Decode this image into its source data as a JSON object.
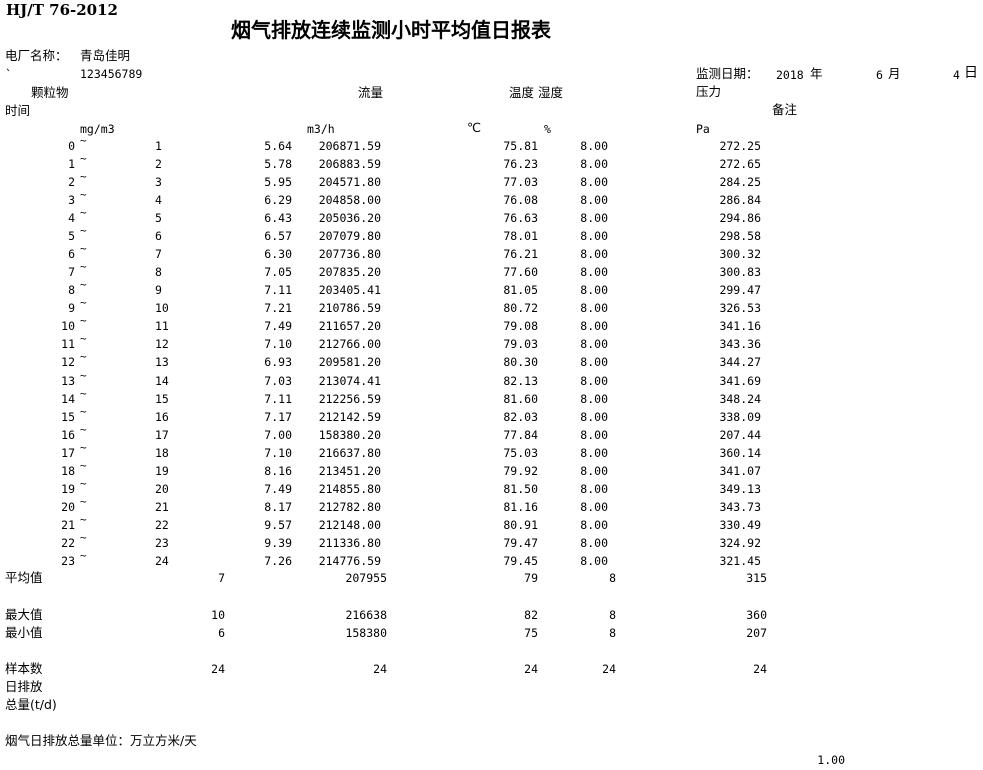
{
  "header": {
    "standard": "HJ/T 76-2012",
    "title": "烟气排放连续监测小时平均值日报表",
    "plant_label": "电厂名称：",
    "plant_name": "青岛佳明",
    "backtick": "`",
    "code": "123456789",
    "date_label": "监测日期：",
    "year": "2018",
    "year_unit": "年",
    "month": "6",
    "month_unit": "月",
    "day": "4",
    "day_unit": "日"
  },
  "columns": {
    "time": "时间",
    "pm": "颗粒物",
    "flow": "流量",
    "temp_humidity": "温度 湿度",
    "pressure": "压力",
    "remark": "备注",
    "pm_unit": "mg/m3",
    "flow_unit": "m3/h",
    "temp_unit": "℃",
    "humidity_unit": "%",
    "pressure_unit": "Pa"
  },
  "tilde": "~",
  "rows": [
    {
      "start": "0",
      "end": "1",
      "pm": "5.64",
      "flow": "206871.59",
      "temp": "75.81",
      "humidity": "8.00",
      "pressure": "272.25"
    },
    {
      "start": "1",
      "end": "2",
      "pm": "5.78",
      "flow": "206883.59",
      "temp": "76.23",
      "humidity": "8.00",
      "pressure": "272.65"
    },
    {
      "start": "2",
      "end": "3",
      "pm": "5.95",
      "flow": "204571.80",
      "temp": "77.03",
      "humidity": "8.00",
      "pressure": "284.25"
    },
    {
      "start": "3",
      "end": "4",
      "pm": "6.29",
      "flow": "204858.00",
      "temp": "76.08",
      "humidity": "8.00",
      "pressure": "286.84"
    },
    {
      "start": "4",
      "end": "5",
      "pm": "6.43",
      "flow": "205036.20",
      "temp": "76.63",
      "humidity": "8.00",
      "pressure": "294.86"
    },
    {
      "start": "5",
      "end": "6",
      "pm": "6.57",
      "flow": "207079.80",
      "temp": "78.01",
      "humidity": "8.00",
      "pressure": "298.58"
    },
    {
      "start": "6",
      "end": "7",
      "pm": "6.30",
      "flow": "207736.80",
      "temp": "76.21",
      "humidity": "8.00",
      "pressure": "300.32"
    },
    {
      "start": "7",
      "end": "8",
      "pm": "7.05",
      "flow": "207835.20",
      "temp": "77.60",
      "humidity": "8.00",
      "pressure": "300.83"
    },
    {
      "start": "8",
      "end": "9",
      "pm": "7.11",
      "flow": "203405.41",
      "temp": "81.05",
      "humidity": "8.00",
      "pressure": "299.47"
    },
    {
      "start": "9",
      "end": "10",
      "pm": "7.21",
      "flow": "210786.59",
      "temp": "80.72",
      "humidity": "8.00",
      "pressure": "326.53"
    },
    {
      "start": "10",
      "end": "11",
      "pm": "7.49",
      "flow": "211657.20",
      "temp": "79.08",
      "humidity": "8.00",
      "pressure": "341.16"
    },
    {
      "start": "11",
      "end": "12",
      "pm": "7.10",
      "flow": "212766.00",
      "temp": "79.03",
      "humidity": "8.00",
      "pressure": "343.36"
    },
    {
      "start": "12",
      "end": "13",
      "pm": "6.93",
      "flow": "209581.20",
      "temp": "80.30",
      "humidity": "8.00",
      "pressure": "344.27"
    },
    {
      "start": "13",
      "end": "14",
      "pm": "7.03",
      "flow": "213074.41",
      "temp": "82.13",
      "humidity": "8.00",
      "pressure": "341.69"
    },
    {
      "start": "14",
      "end": "15",
      "pm": "7.11",
      "flow": "212256.59",
      "temp": "81.60",
      "humidity": "8.00",
      "pressure": "348.24"
    },
    {
      "start": "15",
      "end": "16",
      "pm": "7.17",
      "flow": "212142.59",
      "temp": "82.03",
      "humidity": "8.00",
      "pressure": "338.09"
    },
    {
      "start": "16",
      "end": "17",
      "pm": "7.00",
      "flow": "158380.20",
      "temp": "77.84",
      "humidity": "8.00",
      "pressure": "207.44"
    },
    {
      "start": "17",
      "end": "18",
      "pm": "7.10",
      "flow": "216637.80",
      "temp": "75.03",
      "humidity": "8.00",
      "pressure": "360.14"
    },
    {
      "start": "18",
      "end": "19",
      "pm": "8.16",
      "flow": "213451.20",
      "temp": "79.92",
      "humidity": "8.00",
      "pressure": "341.07"
    },
    {
      "start": "19",
      "end": "20",
      "pm": "7.49",
      "flow": "214855.80",
      "temp": "81.50",
      "humidity": "8.00",
      "pressure": "349.13"
    },
    {
      "start": "20",
      "end": "21",
      "pm": "8.17",
      "flow": "212782.80",
      "temp": "81.16",
      "humidity": "8.00",
      "pressure": "343.73"
    },
    {
      "start": "21",
      "end": "22",
      "pm": "9.57",
      "flow": "212148.00",
      "temp": "80.91",
      "humidity": "8.00",
      "pressure": "330.49"
    },
    {
      "start": "22",
      "end": "23",
      "pm": "9.39",
      "flow": "211336.80",
      "temp": "79.47",
      "humidity": "8.00",
      "pressure": "324.92"
    },
    {
      "start": "23",
      "end": "24",
      "pm": "7.26",
      "flow": "214776.59",
      "temp": "79.45",
      "humidity": "8.00",
      "pressure": "321.45"
    }
  ],
  "summary": {
    "avg": {
      "label": "平均值",
      "pm": "7",
      "flow": "207955",
      "temp": "79",
      "humidity": "8",
      "pressure": "315"
    },
    "max": {
      "label": "最大值",
      "pm": "10",
      "flow": "216638",
      "temp": "82",
      "humidity": "8",
      "pressure": "360"
    },
    "min": {
      "label": "最小值",
      "pm": "6",
      "flow": "158380",
      "temp": "75",
      "humidity": "8",
      "pressure": "207"
    },
    "count": {
      "label": "样本数",
      "pm": "24",
      "flow": "24",
      "temp": "24",
      "humidity": "24",
      "pressure": "24"
    },
    "daily_label_1": "日排放",
    "daily_label_2": "总量(t/d)"
  },
  "footer": {
    "unit_note": "烟气日排放总量单位：万立方米/天",
    "value": "1.00"
  }
}
